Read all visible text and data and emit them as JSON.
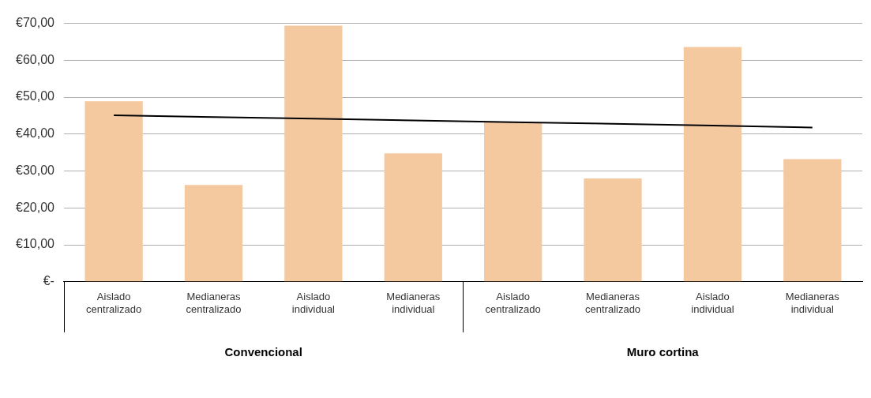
{
  "chart_data": {
    "type": "bar",
    "categories": [
      "Aislado centralizado",
      "Medianeras centralizado",
      "Aislado individual",
      "Medianeras individual",
      "Aislado centralizado",
      "Medianeras centralizado",
      "Aislado individual",
      "Medianeras individual"
    ],
    "series": [
      {
        "color": "#f5c9a0",
        "values": [
          48.9,
          26.2,
          69.4,
          34.8,
          43.2,
          28.0,
          63.6,
          33.2
        ]
      },
      {
        "type": "line",
        "color": "#000000",
        "values": [
          45.1,
          44.6,
          44.2,
          43.7,
          43.2,
          42.8,
          42.3,
          41.8
        ]
      }
    ],
    "ylim": [
      0,
      70
    ],
    "yticks": [
      {
        "value": 0,
        "label": "€-"
      },
      {
        "value": 10,
        "label": "€10,00"
      },
      {
        "value": 20,
        "label": "€20,00"
      },
      {
        "value": 30,
        "label": "€30,00"
      },
      {
        "value": 40,
        "label": "€40,00"
      },
      {
        "value": 50,
        "label": "€50,00"
      },
      {
        "value": 60,
        "label": "€60,00"
      },
      {
        "value": 70,
        "label": "€70,00"
      }
    ],
    "grid": "y",
    "legend": false,
    "marker": "none",
    "line_style": "solid",
    "annotations": [
      "Convencional",
      "Muro cortina"
    ]
  }
}
